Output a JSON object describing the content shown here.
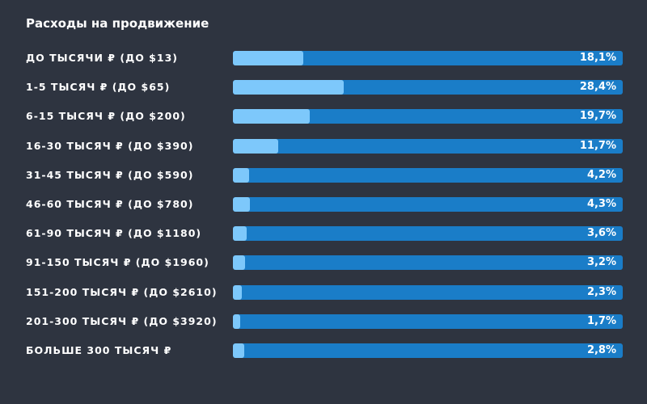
{
  "chart_data": {
    "type": "bar",
    "orientation": "horizontal",
    "title": "Расходы на продвижение",
    "categories": [
      "ДО ТЫСЯЧИ ₽ (ДО $13)",
      "1-5 ТЫСЯЧ ₽ (ДО $65)",
      "6-15 ТЫСЯЧ ₽ (ДО $200)",
      "16-30 ТЫСЯЧ ₽ (ДО $390)",
      "31-45 ТЫСЯЧ ₽ (ДО $590)",
      "46-60 ТЫСЯЧ ₽ (ДО $780)",
      "61-90 ТЫСЯЧ ₽ (ДО $1180)",
      "91-150 ТЫСЯЧ ₽ (ДО $1960)",
      "151-200 ТЫСЯЧ ₽ (ДО $2610)",
      "201-300 ТЫСЯЧ ₽ (ДО $3920)",
      "БОЛЬШЕ 300 ТЫСЯЧ ₽"
    ],
    "values": [
      18.1,
      28.4,
      19.7,
      11.7,
      4.2,
      4.3,
      3.6,
      3.2,
      2.3,
      1.7,
      2.8
    ],
    "value_labels": [
      "18,1%",
      "28,4%",
      "19,7%",
      "11,7%",
      "4,2%",
      "4,3%",
      "3,6%",
      "3,2%",
      "2,3%",
      "1,7%",
      "2,8%"
    ],
    "xlim": [
      0,
      100
    ],
    "grid": false,
    "legend": "none"
  },
  "colors": {
    "background": "#2e3440",
    "track": "#1a7dc8",
    "fill": "#7dc8fb",
    "text": "#ffffff"
  }
}
